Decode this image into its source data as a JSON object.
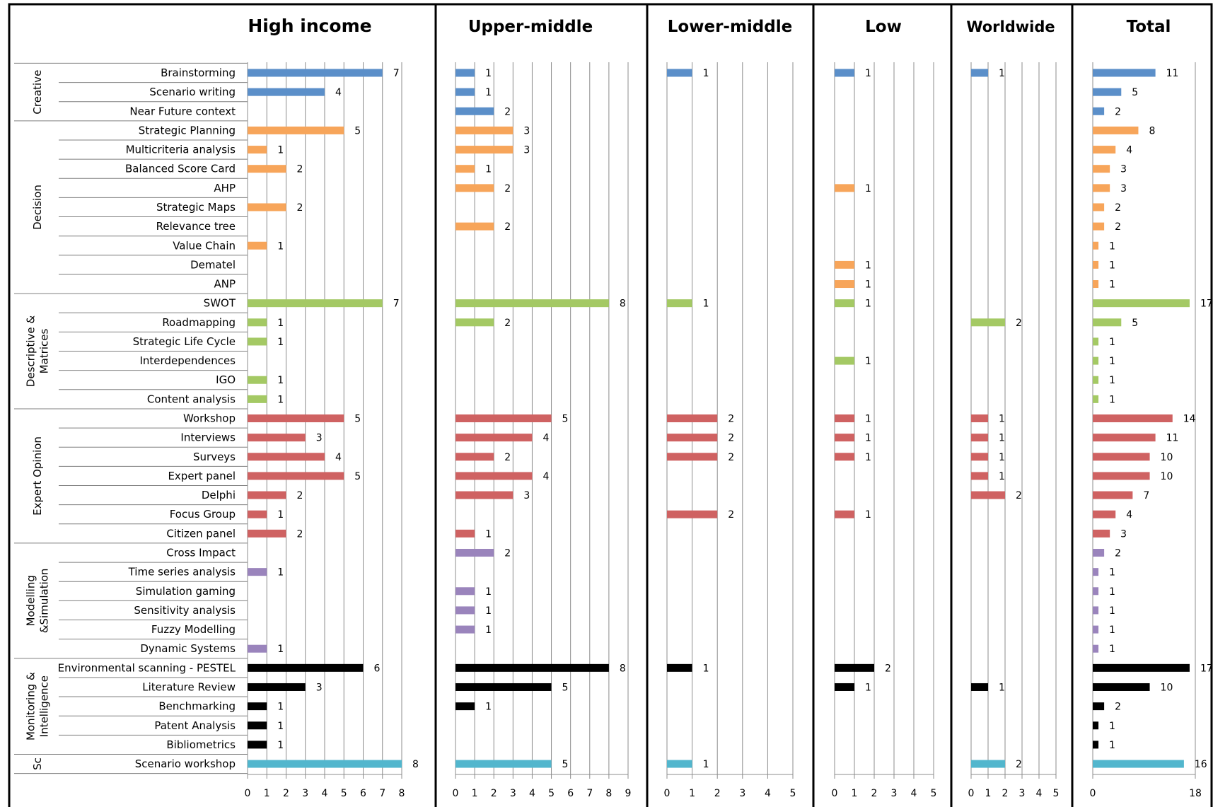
{
  "colors": {
    "Creative": "#5B8FC9",
    "Decision": "#F7A55A",
    "Descriptive & Matrices": "#A4C964",
    "Expert Opinion": "#CF6262",
    "Modelling &Simulation": "#9A84BC",
    "Monitoring & Intelligence": "#000000",
    "Sc": "#52B6CD"
  },
  "groups": [
    {
      "name": "Creative",
      "lines": [
        "Creative"
      ],
      "count": 3
    },
    {
      "name": "Decision",
      "lines": [
        "Decision"
      ],
      "count": 9
    },
    {
      "name": "Descriptive & Matrices",
      "lines": [
        "Descriptive &",
        "Matrices"
      ],
      "count": 6
    },
    {
      "name": "Expert Opinion",
      "lines": [
        "Expert Opinion"
      ],
      "count": 7
    },
    {
      "name": "Modelling &Simulation",
      "lines": [
        "Modelling",
        "&Simulation"
      ],
      "count": 6
    },
    {
      "name": "Monitoring & Intelligence",
      "lines": [
        "Monitoring &",
        "Intelligence"
      ],
      "count": 5
    },
    {
      "name": "Sc",
      "lines": [
        "Sc"
      ],
      "count": 1
    }
  ],
  "chart_data": {
    "type": "bar",
    "orientation": "horizontal",
    "categories": [
      "Brainstorming",
      "Scenario writing",
      "Near Future context",
      "Strategic Planning",
      "Multicriteria analysis",
      "Balanced Score Card",
      "AHP",
      "Strategic Maps",
      "Relevance tree",
      "Value Chain",
      "Dematel",
      "ANP",
      "SWOT",
      "Roadmapping",
      "Strategic Life Cycle",
      "Interdependences",
      "IGO",
      "Content analysis",
      "Workshop",
      "Interviews",
      "Surveys",
      "Expert panel",
      "Delphi",
      "Focus Group",
      "Citizen panel",
      "Cross Impact",
      "Time series analysis",
      "Simulation gaming",
      "Sensitivity analysis",
      "Fuzzy Modelling",
      "Dynamic Systems",
      "Environmental scanning - PESTEL",
      "Literature Review",
      "Benchmarking",
      "Patent Analysis",
      "Bibliometrics",
      "Scenario workshop"
    ],
    "panels": [
      {
        "title": "High income",
        "xlim": [
          0,
          8
        ],
        "ticks": [
          "0",
          "1",
          "2",
          "3",
          "4",
          "5",
          "6",
          "7",
          "8"
        ],
        "values": [
          7,
          4,
          null,
          5,
          1,
          2,
          null,
          2,
          null,
          1,
          null,
          null,
          7,
          1,
          1,
          null,
          1,
          1,
          5,
          3,
          4,
          5,
          2,
          1,
          2,
          null,
          1,
          null,
          null,
          null,
          1,
          6,
          3,
          1,
          1,
          1,
          8
        ]
      },
      {
        "title": "Upper-middle",
        "xlim": [
          0,
          9
        ],
        "ticks": [
          "0",
          "1",
          "2",
          "3",
          "4",
          "5",
          "6",
          "7",
          "8",
          "9"
        ],
        "values": [
          1,
          1,
          2,
          3,
          3,
          1,
          2,
          null,
          2,
          null,
          null,
          null,
          8,
          2,
          null,
          null,
          null,
          null,
          5,
          4,
          2,
          4,
          3,
          null,
          1,
          2,
          null,
          1,
          1,
          1,
          null,
          8,
          5,
          1,
          null,
          null,
          5
        ]
      },
      {
        "title": "Lower-middle",
        "xlim": [
          0,
          5
        ],
        "ticks": [
          "0",
          "1",
          "2",
          "3",
          "4",
          "5"
        ],
        "values": [
          1,
          null,
          null,
          null,
          null,
          null,
          null,
          null,
          null,
          null,
          null,
          null,
          1,
          null,
          null,
          null,
          null,
          null,
          2,
          2,
          2,
          null,
          null,
          2,
          null,
          null,
          null,
          null,
          null,
          null,
          null,
          1,
          null,
          null,
          null,
          null,
          1
        ]
      },
      {
        "title": "Low",
        "xlim": [
          0,
          5
        ],
        "ticks": [
          "0",
          "1",
          "2",
          "3",
          "4",
          "5"
        ],
        "values": [
          1,
          null,
          null,
          null,
          null,
          null,
          1,
          null,
          null,
          null,
          1,
          1,
          1,
          null,
          null,
          1,
          null,
          null,
          1,
          1,
          1,
          null,
          null,
          1,
          null,
          null,
          null,
          null,
          null,
          null,
          null,
          2,
          1,
          null,
          null,
          null,
          null
        ]
      },
      {
        "title": "Worldwide",
        "xlim": [
          0,
          5
        ],
        "ticks": [
          "0",
          "1",
          "2",
          "3",
          "4",
          "5"
        ],
        "values": [
          1,
          null,
          null,
          null,
          null,
          null,
          null,
          null,
          null,
          null,
          null,
          null,
          null,
          2,
          null,
          null,
          null,
          null,
          1,
          1,
          1,
          1,
          2,
          null,
          null,
          null,
          null,
          null,
          null,
          null,
          null,
          null,
          1,
          null,
          null,
          null,
          2
        ]
      },
      {
        "title": "Total",
        "xlim": [
          0,
          18
        ],
        "ticks": [
          "0",
          "18"
        ],
        "values": [
          11,
          5,
          2,
          8,
          4,
          3,
          3,
          2,
          2,
          1,
          1,
          1,
          17,
          5,
          1,
          1,
          1,
          1,
          14,
          11,
          10,
          10,
          7,
          4,
          3,
          2,
          1,
          1,
          1,
          1,
          1,
          17,
          10,
          2,
          1,
          1,
          16
        ]
      }
    ]
  }
}
